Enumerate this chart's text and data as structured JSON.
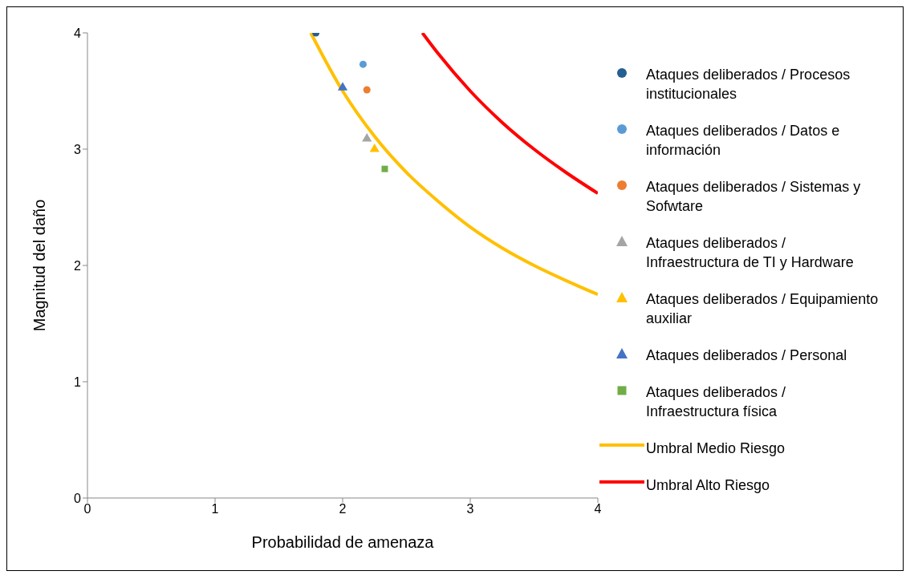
{
  "chart_data": {
    "type": "scatter",
    "xlabel": "Probabilidad de amenaza",
    "ylabel": "Magnitud del daño",
    "xlim": [
      0,
      4
    ],
    "xticks": [
      0,
      1,
      2,
      3,
      4
    ],
    "ylim": [
      0,
      4
    ],
    "yticks": [
      0,
      1,
      2,
      3,
      4
    ],
    "grid": false,
    "legend": "right",
    "series": [
      {
        "name": "Ataques deliberados / Procesos institucionales",
        "color": "#255e91",
        "marker": "circle",
        "x": [
          1.79
        ],
        "values": [
          4
        ]
      },
      {
        "name": "Ataques deliberados / Datos e información",
        "color": "#5b9bd5",
        "marker": "circle",
        "x": [
          2.16
        ],
        "values": [
          3.73
        ]
      },
      {
        "name": "Ataques deliberados / Sistemas y Sofwtare",
        "color": "#ed7d31",
        "marker": "circle",
        "x": [
          2.19
        ],
        "values": [
          3.51
        ]
      },
      {
        "name": "Ataques deliberados / Infraestructura de TI y Hardware",
        "color": "#a5a5a5",
        "marker": "triangle",
        "x": [
          2.19
        ],
        "values": [
          3.09
        ]
      },
      {
        "name": "Ataques deliberados / Equipamiento auxiliar",
        "color": "#ffc000",
        "marker": "triangle",
        "x": [
          2.25
        ],
        "values": [
          3.0
        ]
      },
      {
        "name": "Ataques deliberados / Personal",
        "color": "#4472c4",
        "marker": "triangle",
        "x": [
          2.0
        ],
        "values": [
          3.53
        ]
      },
      {
        "name": "Ataques deliberados / Infraestructura física",
        "color": "#70ad47",
        "marker": "square",
        "x": [
          2.33
        ],
        "values": [
          2.83
        ]
      },
      {
        "name": "Umbral Medio Riesgo",
        "type": "line",
        "color": "#ffc000",
        "x": [
          1.75,
          2,
          2.25,
          2.5,
          2.75,
          3,
          3.25,
          3.5,
          3.75,
          4
        ],
        "values": [
          4,
          3.5,
          3.11,
          2.8,
          2.55,
          2.33,
          2.15,
          2,
          1.87,
          1.75
        ]
      },
      {
        "name": "Umbral Alto Riesgo",
        "type": "line",
        "color": "#ff0000",
        "x": [
          2.625,
          2.75,
          3,
          3.25,
          3.5,
          3.75,
          4
        ],
        "values": [
          4,
          3.82,
          3.5,
          3.23,
          3,
          2.8,
          2.62
        ]
      }
    ]
  }
}
